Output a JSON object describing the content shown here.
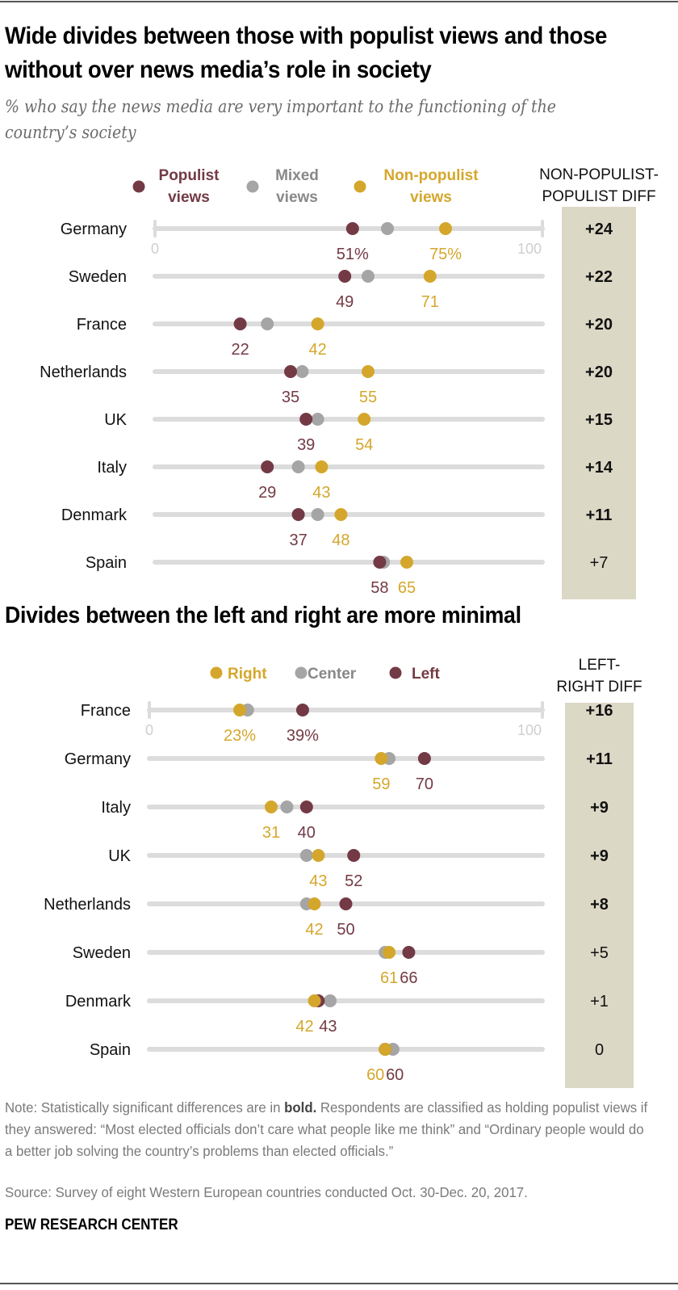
{
  "title": "Wide divides between those with populist views and those without over news media’s role in society",
  "subtitle": "% who say the news media are very important to the functioning of the country’s society",
  "colors": {
    "populist": "#733a45",
    "mixed": "#a5a5a5",
    "nonpopulist": "#d4a72c",
    "track": "#dcdcdc",
    "diff_bg": "#dcd8c6",
    "axis_label": "#cfcfcf",
    "mixed_text": "#888888"
  },
  "chart_data": [
    {
      "type": "dot-plot",
      "title": "Wide divides between those with populist views and those without over news media’s role in society",
      "xlim": [
        0,
        100
      ],
      "axis_ticks": [
        "0",
        "100"
      ],
      "legend": [
        {
          "key": "populist",
          "line1": "Populist",
          "line2": "views"
        },
        {
          "key": "mixed",
          "line1": "Mixed",
          "line2": "views"
        },
        {
          "key": "nonpopulist",
          "line1": "Non-populist",
          "line2": "views"
        }
      ],
      "legend_position": "top",
      "diff_header": [
        "NON-POPULIST-",
        "POPULIST DIFF"
      ],
      "label_keys": [
        "populist",
        "nonpopulist"
      ],
      "rows": [
        {
          "country": "Germany",
          "populist": 51,
          "mixed": 60,
          "nonpopulist": 75,
          "populist_label": "51%",
          "nonpopulist_label": "75%",
          "diff": "+24",
          "significant": true
        },
        {
          "country": "Sweden",
          "populist": 49,
          "mixed": 55,
          "nonpopulist": 71,
          "populist_label": "49",
          "nonpopulist_label": "71",
          "diff": "+22",
          "significant": true
        },
        {
          "country": "France",
          "populist": 22,
          "mixed": 29,
          "nonpopulist": 42,
          "populist_label": "22",
          "nonpopulist_label": "42",
          "diff": "+20",
          "significant": true
        },
        {
          "country": "Netherlands",
          "populist": 35,
          "mixed": 38,
          "nonpopulist": 55,
          "populist_label": "35",
          "nonpopulist_label": "55",
          "diff": "+20",
          "significant": true
        },
        {
          "country": "UK",
          "populist": 39,
          "mixed": 42,
          "nonpopulist": 54,
          "populist_label": "39",
          "nonpopulist_label": "54",
          "diff": "+15",
          "significant": true
        },
        {
          "country": "Italy",
          "populist": 29,
          "mixed": 37,
          "nonpopulist": 43,
          "populist_label": "29",
          "nonpopulist_label": "43",
          "diff": "+14",
          "significant": true
        },
        {
          "country": "Denmark",
          "populist": 37,
          "mixed": 42,
          "nonpopulist": 48,
          "populist_label": "37",
          "nonpopulist_label": "48",
          "diff": "+11",
          "significant": true
        },
        {
          "country": "Spain",
          "populist": 58,
          "mixed": 59,
          "nonpopulist": 65,
          "populist_label": "58",
          "nonpopulist_label": "65",
          "diff": "+7",
          "significant": false
        }
      ]
    },
    {
      "type": "dot-plot",
      "title": "Divides between the left and right are more minimal",
      "xlim": [
        0,
        100
      ],
      "axis_ticks": [
        "0",
        "100"
      ],
      "legend": [
        {
          "key": "right",
          "line1": "Right"
        },
        {
          "key": "center",
          "line1": "Center"
        },
        {
          "key": "left",
          "line1": "Left"
        }
      ],
      "legend_position": "top",
      "diff_header": [
        "LEFT-",
        "RIGHT DIFF"
      ],
      "label_keys": [
        "right",
        "left"
      ],
      "rows": [
        {
          "country": "France",
          "right": 23,
          "center": 25,
          "left": 39,
          "right_label": "23%",
          "left_label": "39%",
          "diff": "+16",
          "significant": true
        },
        {
          "country": "Germany",
          "right": 59,
          "center": 61,
          "left": 70,
          "right_label": "59",
          "left_label": "70",
          "diff": "+11",
          "significant": true
        },
        {
          "country": "Italy",
          "right": 31,
          "center": 35,
          "left": 40,
          "right_label": "31",
          "left_label": "40",
          "diff": "+9",
          "significant": true
        },
        {
          "country": "UK",
          "right": 43,
          "center": 40,
          "left": 52,
          "right_label": "43",
          "left_label": "52",
          "diff": "+9",
          "significant": true
        },
        {
          "country": "Netherlands",
          "right": 42,
          "center": 40,
          "left": 50,
          "right_label": "42",
          "left_label": "50",
          "diff": "+8",
          "significant": true
        },
        {
          "country": "Sweden",
          "right": 61,
          "center": 60,
          "left": 66,
          "right_label": "61",
          "left_label": "66",
          "diff": "+5",
          "significant": false
        },
        {
          "country": "Denmark",
          "right": 42,
          "center": 46,
          "left": 43,
          "right_label": "42",
          "left_label": "43",
          "diff": "+1",
          "significant": false
        },
        {
          "country": "Spain",
          "right": 60,
          "center": 62,
          "left": 60,
          "right_label": "60",
          "left_label": "60",
          "diff": "0",
          "significant": false
        }
      ]
    }
  ],
  "section2_title": "Divides between the left and right are more minimal",
  "note_prefix": "Note: Statistically significant differences are in ",
  "note_bold": "bold.",
  "note_rest": " Respondents are classified as holding populist views if they answered: “Most elected officials don’t care what people like me think” and “Ordinary people would do a better job solving the country’s problems than elected officials.”",
  "source": "Source: Survey of eight Western European countries conducted Oct. 30-Dec. 20, 2017.",
  "brand": "PEW RESEARCH CENTER"
}
